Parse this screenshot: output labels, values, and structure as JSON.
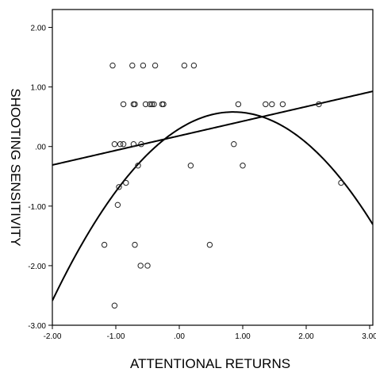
{
  "chart_data": {
    "type": "scatter",
    "xlabel": "ATTENTIONAL RETURNS",
    "ylabel": "SHOOTING SENSITIVITY",
    "xlim": [
      -2.0,
      3.0
    ],
    "ylim": [
      -3.0,
      2.3
    ],
    "x_ticks": [
      {
        "value": -2.0,
        "label": "-2.00"
      },
      {
        "value": -1.0,
        "label": "-1.00"
      },
      {
        "value": 0.0,
        "label": ".00"
      },
      {
        "value": 1.0,
        "label": "1.00"
      },
      {
        "value": 2.0,
        "label": "2.00"
      },
      {
        "value": 3.0,
        "label": "3.00"
      }
    ],
    "y_ticks": [
      {
        "value": 2.0,
        "label": "2.00"
      },
      {
        "value": 1.0,
        "label": "1.00"
      },
      {
        "value": 0.0,
        "label": ".00"
      },
      {
        "value": -1.0,
        "label": "-1.00"
      },
      {
        "value": -2.0,
        "label": "-2.00"
      },
      {
        "value": -3.0,
        "label": "-3.00"
      }
    ],
    "grid": false,
    "marker": "open-circle",
    "points": [
      {
        "x": -1.05,
        "y": 1.36
      },
      {
        "x": -0.74,
        "y": 1.36
      },
      {
        "x": -0.57,
        "y": 1.36
      },
      {
        "x": -0.38,
        "y": 1.36
      },
      {
        "x": 0.08,
        "y": 1.36
      },
      {
        "x": 0.23,
        "y": 1.36
      },
      {
        "x": -0.88,
        "y": 0.71
      },
      {
        "x": -0.72,
        "y": 0.71
      },
      {
        "x": -0.7,
        "y": 0.71
      },
      {
        "x": -0.53,
        "y": 0.71
      },
      {
        "x": -0.46,
        "y": 0.71
      },
      {
        "x": -0.43,
        "y": 0.71
      },
      {
        "x": -0.4,
        "y": 0.71
      },
      {
        "x": -0.27,
        "y": 0.71
      },
      {
        "x": -0.25,
        "y": 0.71
      },
      {
        "x": 0.93,
        "y": 0.71
      },
      {
        "x": 1.36,
        "y": 0.71
      },
      {
        "x": 1.46,
        "y": 0.71
      },
      {
        "x": 1.63,
        "y": 0.71
      },
      {
        "x": 2.2,
        "y": 0.71
      },
      {
        "x": -1.02,
        "y": 0.04
      },
      {
        "x": -0.93,
        "y": 0.04
      },
      {
        "x": -0.88,
        "y": 0.04
      },
      {
        "x": -0.72,
        "y": 0.04
      },
      {
        "x": -0.6,
        "y": 0.04
      },
      {
        "x": 0.86,
        "y": 0.04
      },
      {
        "x": -0.65,
        "y": -0.32
      },
      {
        "x": 0.18,
        "y": -0.32
      },
      {
        "x": 1.0,
        "y": -0.32
      },
      {
        "x": -0.84,
        "y": -0.61
      },
      {
        "x": -0.95,
        "y": -0.68
      },
      {
        "x": 2.55,
        "y": -0.61
      },
      {
        "x": -0.97,
        "y": -0.98
      },
      {
        "x": -1.18,
        "y": -1.65
      },
      {
        "x": -0.7,
        "y": -1.65
      },
      {
        "x": 0.48,
        "y": -1.65
      },
      {
        "x": -0.61,
        "y": -2.0
      },
      {
        "x": -0.5,
        "y": -2.0
      },
      {
        "x": -1.02,
        "y": -2.67
      }
    ],
    "fit_lines": [
      {
        "kind": "linear",
        "intercept": 0.18,
        "slope": 0.245
      },
      {
        "kind": "quadratic",
        "a": -0.39,
        "h": 0.85,
        "k": 0.58
      }
    ]
  }
}
